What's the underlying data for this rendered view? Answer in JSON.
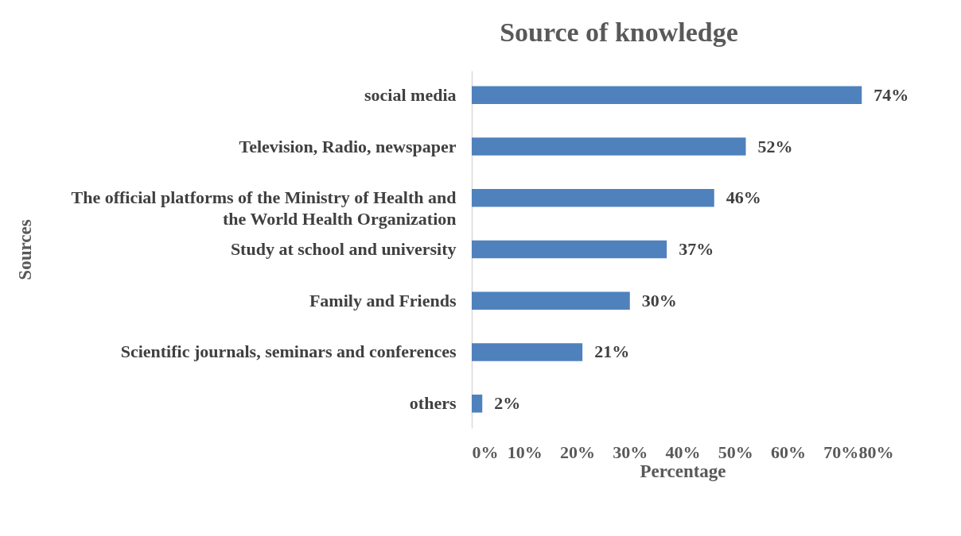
{
  "chart_data": {
    "type": "bar",
    "orientation": "horizontal",
    "title": "Source of knowledge",
    "xlabel": "Percentage",
    "ylabel": "Sources",
    "categories": [
      "social media",
      "Television, Radio, newspaper",
      "The official platforms of the Ministry of Health and the World Health Organization",
      "Study at school and university",
      "Family and Friends",
      "Scientific journals, seminars and conferences",
      "others"
    ],
    "values": [
      74,
      52,
      46,
      37,
      30,
      21,
      2
    ],
    "value_labels": [
      "74%",
      "52%",
      "46%",
      "37%",
      "30%",
      "21%",
      "2%"
    ],
    "color": "#4f81bd",
    "xlim": [
      0,
      80
    ],
    "xticks": [
      {
        "value": 0,
        "label": "0%"
      },
      {
        "value": 10,
        "label": "10%"
      },
      {
        "value": 20,
        "label": "20%"
      },
      {
        "value": 30,
        "label": "30%"
      },
      {
        "value": 40,
        "label": "40%"
      },
      {
        "value": 50,
        "label": "50%"
      },
      {
        "value": 60,
        "label": "60%"
      },
      {
        "value": 70,
        "label": "70%"
      },
      {
        "value": 80,
        "label": "80%"
      }
    ],
    "grid": false
  }
}
